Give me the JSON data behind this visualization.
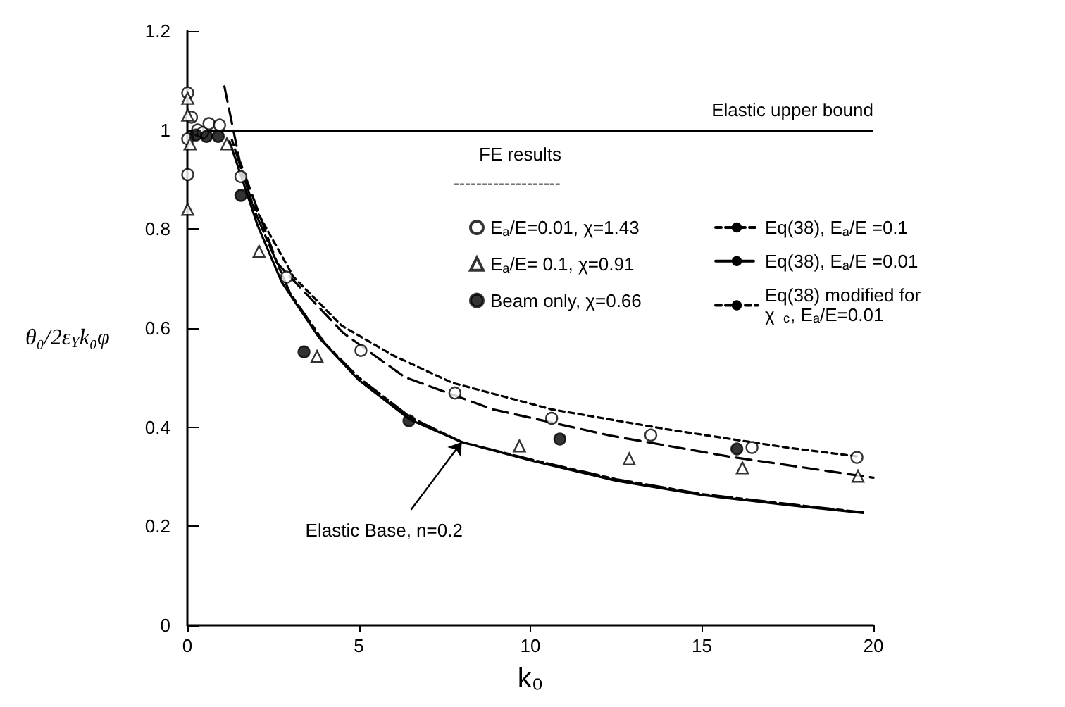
{
  "chart_data": {
    "type": "scatter",
    "xlabel": "k₀",
    "ylabel": "θ₀/2ε$_{Y}$k₀φ",
    "legend_title": "FE results",
    "xlim": [
      0,
      20
    ],
    "xticks": [
      0,
      5,
      10,
      15,
      20
    ],
    "ylim": [
      0,
      1.2
    ],
    "yticks": [
      0,
      0.2,
      0.4,
      0.6,
      0.8,
      1,
      1.2
    ],
    "grid": false,
    "legend": "top right",
    "ref_lines": [
      {
        "axis": "y",
        "value": 1,
        "label": "Elastic upper bound",
        "color": "#000000",
        "line_style": "solid"
      }
    ],
    "annotations": [
      "-------------------",
      {
        "text": "Elastic Base, n=0.2",
        "x": 8,
        "y": 0.37
      }
    ],
    "series": [
      {
        "name": "E$_{a}$/E=0.01, χ=1.43",
        "marker": "circle",
        "color": "#ffffff",
        "x": [
          0.01,
          0.01,
          0.01,
          0.12,
          0.3,
          0.45,
          0.63,
          0.94,
          1.56,
          2.89,
          5.06,
          7.8,
          10.62,
          13.51,
          16.46,
          19.52
        ],
        "values": [
          1.075,
          0.91,
          0.982,
          1.026,
          1.0,
          0.995,
          1.013,
          1.01,
          0.906,
          0.703,
          0.555,
          0.469,
          0.418,
          0.384,
          0.359,
          0.339
        ]
      },
      {
        "name": "E$_{a}$/E= 0.1, χ=0.91",
        "marker": "triangle",
        "color": "#ffffff",
        "x": [
          0.01,
          0.01,
          0.01,
          0.08,
          1.15,
          2.09,
          3.78,
          9.68,
          12.88,
          16.18,
          19.55
        ],
        "values": [
          1.064,
          1.03,
          0.84,
          0.972,
          0.972,
          0.755,
          0.543,
          0.362,
          0.336,
          0.318,
          0.301
        ]
      },
      {
        "name": "Beam only, χ=0.66",
        "marker": "circle",
        "color": "#000000",
        "x": [
          0.25,
          0.56,
          0.9,
          1.56,
          3.4,
          6.46,
          10.86,
          16.02
        ],
        "values": [
          0.99,
          0.987,
          0.987,
          0.868,
          0.552,
          0.413,
          0.376,
          0.356
        ]
      },
      {
        "type": "line",
        "line_style": "solid",
        "color": "#000000",
        "x": [
          1.23,
          2.05,
          2.75,
          3.85,
          5,
          6.5,
          8,
          10,
          12.5,
          15,
          17.5,
          19.7
        ],
        "values": [
          0.977,
          0.807,
          0.693,
          0.58,
          0.495,
          0.415,
          0.37,
          0.333,
          0.292,
          0.263,
          0.243,
          0.227
        ]
      },
      {
        "name": "Eq(38), E$_{a}$/E =0.1",
        "type": "line",
        "line_style": "dashdot",
        "color": "#000000",
        "x": [
          1.3,
          2,
          3,
          4,
          5,
          6.5,
          8,
          10,
          12.5,
          15,
          17.5,
          19.7
        ],
        "values": [
          0.98,
          0.83,
          0.67,
          0.57,
          0.5,
          0.42,
          0.37,
          0.335,
          0.295,
          0.265,
          0.245,
          0.228
        ]
      },
      {
        "name": "Eq(38), E$_{a}$/E =0.01",
        "type": "line",
        "line_style": "dashed",
        "color": "#000000",
        "x": [
          1.08,
          1.52,
          2.62,
          4.55,
          6.34,
          8.91,
          12.33,
          15.76,
          20
        ],
        "values": [
          1.088,
          0.939,
          0.731,
          0.59,
          0.501,
          0.436,
          0.383,
          0.341,
          0.298
        ]
      },
      {
        "name": "Eq(38) modified for χ$_{c}$, E$_{a}$/E=0.01",
        "type": "line",
        "line_style": "dotted",
        "color": "#000000",
        "x": [
          1.8,
          3.1,
          4.5,
          6,
          7.71,
          10.62,
          14.05,
          17.47,
          19.52
        ],
        "values": [
          0.864,
          0.703,
          0.605,
          0.545,
          0.49,
          0.436,
          0.395,
          0.359,
          0.341
        ]
      }
    ]
  }
}
